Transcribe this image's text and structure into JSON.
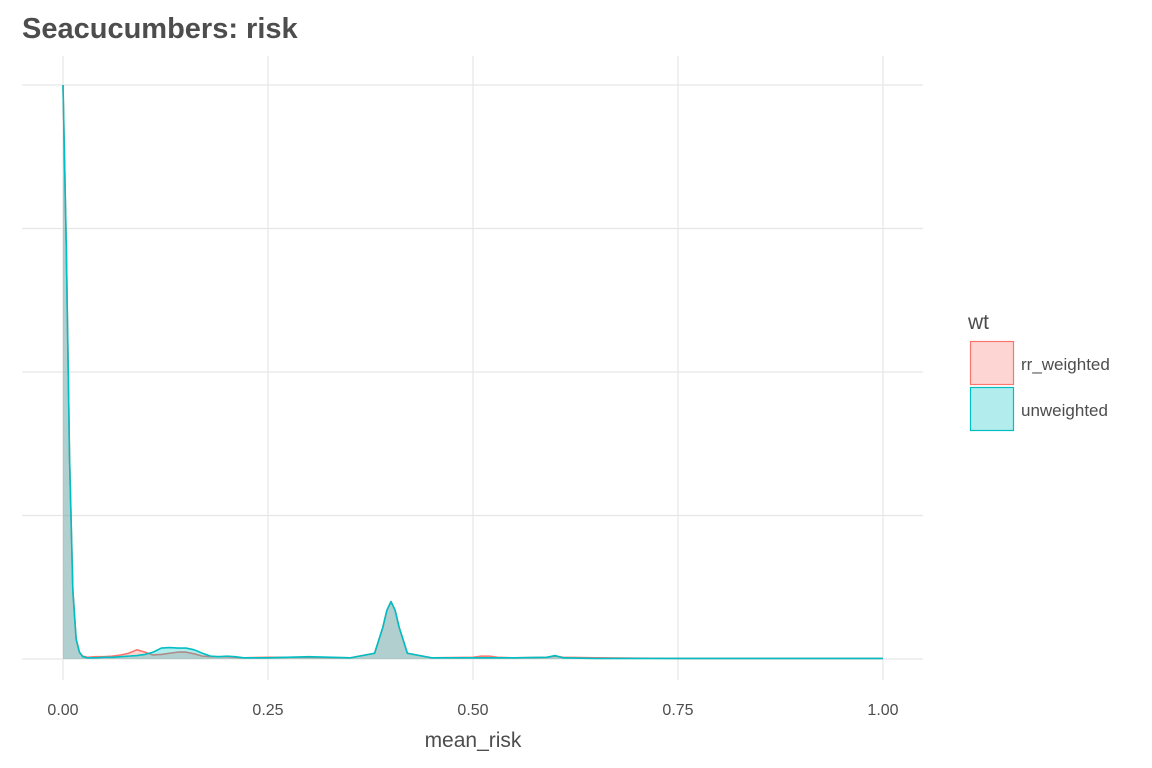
{
  "chart_data": {
    "type": "area",
    "title": "Seacucumbers: risk",
    "xlabel": "mean_risk",
    "ylabel": "",
    "xlim": [
      0,
      1
    ],
    "ylim": [
      0,
      1
    ],
    "x_ticks": [
      "0.00",
      "0.25",
      "0.50",
      "0.75",
      "1.00"
    ],
    "y_tick_labels_shown": false,
    "grid": true,
    "legend": {
      "title": "wt",
      "position": "right",
      "entries": [
        "rr_weighted",
        "unweighted"
      ]
    },
    "series": [
      {
        "name": "rr_weighted",
        "color": "#F8766D",
        "fill": "#F8766D",
        "x": [
          0,
          0.004,
          0.008,
          0.012,
          0.016,
          0.02,
          0.024,
          0.03,
          0.04,
          0.05,
          0.06,
          0.07,
          0.08,
          0.09,
          0.1,
          0.11,
          0.12,
          0.13,
          0.14,
          0.15,
          0.16,
          0.17,
          0.18,
          0.19,
          0.2,
          0.21,
          0.22,
          0.25,
          0.3,
          0.35,
          0.38,
          0.39,
          0.395,
          0.4,
          0.405,
          0.41,
          0.42,
          0.45,
          0.5,
          0.51,
          0.52,
          0.53,
          0.55,
          0.59,
          0.6,
          0.61,
          0.65,
          0.75,
          1.0
        ],
        "y": [
          1.0,
          0.72,
          0.35,
          0.12,
          0.035,
          0.012,
          0.005,
          0.003,
          0.004,
          0.004,
          0.005,
          0.007,
          0.01,
          0.016,
          0.012,
          0.007,
          0.008,
          0.01,
          0.012,
          0.012,
          0.009,
          0.005,
          0.004,
          0.004,
          0.004,
          0.003,
          0.002,
          0.003,
          0.003,
          0.002,
          0.01,
          0.055,
          0.085,
          0.1,
          0.085,
          0.055,
          0.01,
          0.002,
          0.003,
          0.005,
          0.005,
          0.003,
          0.002,
          0.003,
          0.005,
          0.003,
          0.002,
          0.001,
          0.001
        ]
      },
      {
        "name": "unweighted",
        "color": "#00BFC4",
        "fill": "#00BFC4",
        "x": [
          0,
          0.004,
          0.008,
          0.012,
          0.016,
          0.02,
          0.024,
          0.03,
          0.04,
          0.05,
          0.06,
          0.07,
          0.08,
          0.09,
          0.1,
          0.11,
          0.12,
          0.13,
          0.14,
          0.15,
          0.16,
          0.17,
          0.18,
          0.19,
          0.2,
          0.21,
          0.22,
          0.25,
          0.3,
          0.35,
          0.38,
          0.39,
          0.395,
          0.4,
          0.405,
          0.41,
          0.42,
          0.45,
          0.5,
          0.51,
          0.52,
          0.53,
          0.55,
          0.59,
          0.6,
          0.61,
          0.65,
          0.75,
          1.0
        ],
        "y": [
          1.0,
          0.72,
          0.35,
          0.12,
          0.035,
          0.012,
          0.004,
          0.002,
          0.002,
          0.003,
          0.003,
          0.004,
          0.005,
          0.006,
          0.008,
          0.012,
          0.019,
          0.02,
          0.019,
          0.019,
          0.016,
          0.01,
          0.005,
          0.004,
          0.005,
          0.004,
          0.002,
          0.002,
          0.004,
          0.002,
          0.01,
          0.055,
          0.085,
          0.1,
          0.085,
          0.055,
          0.01,
          0.002,
          0.002,
          0.002,
          0.002,
          0.002,
          0.002,
          0.003,
          0.006,
          0.002,
          0.001,
          0.001,
          0.001
        ]
      }
    ]
  }
}
